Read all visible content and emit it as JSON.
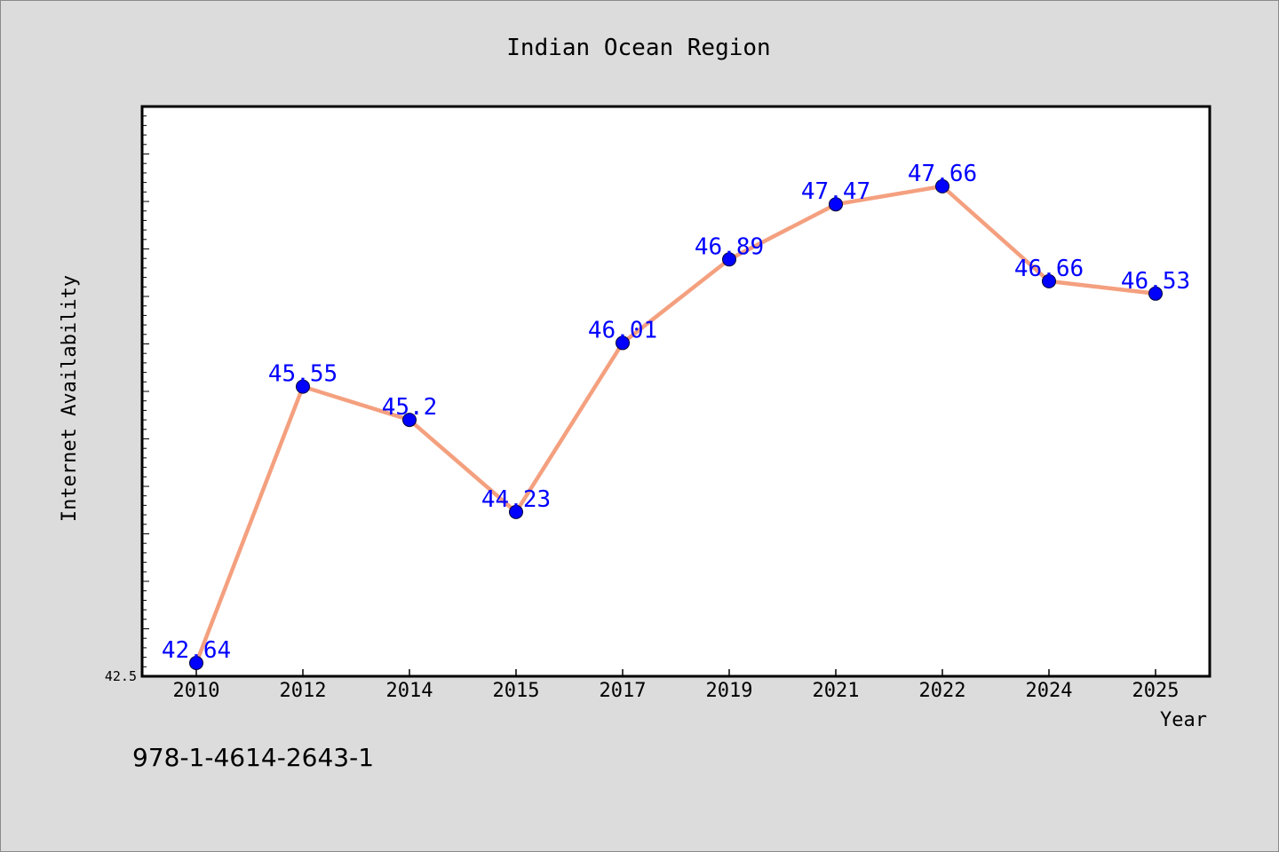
{
  "footer_text": "978-1-4614-2643-1",
  "colors": {
    "background": "#dcdcdc",
    "plot_background": "#ffffff",
    "line": "#f4a07f",
    "marker": "#0000ff",
    "data_label": "#0000ff"
  },
  "chart_data": {
    "type": "line",
    "title": "Indian Ocean Region",
    "xlabel": "Year",
    "ylabel": "Internet Availability",
    "categories": [
      "2010",
      "2012",
      "2014",
      "2015",
      "2017",
      "2019",
      "2021",
      "2022",
      "2024",
      "2025"
    ],
    "series": [
      {
        "values": [
          42.64,
          45.55,
          45.2,
          44.23,
          46.01,
          46.89,
          47.47,
          47.66,
          46.66,
          46.53
        ],
        "labels": [
          "42.64",
          "45.55",
          "45.2",
          "44.23",
          "46.01",
          "46.89",
          "47.47",
          "47.66",
          "46.66",
          "46.53"
        ]
      }
    ],
    "ylim": [
      42.5,
      48.5
    ],
    "ytick_labels": [
      {
        "value": 42.5,
        "label": "42.5"
      }
    ],
    "grid": false,
    "legend": "none"
  }
}
